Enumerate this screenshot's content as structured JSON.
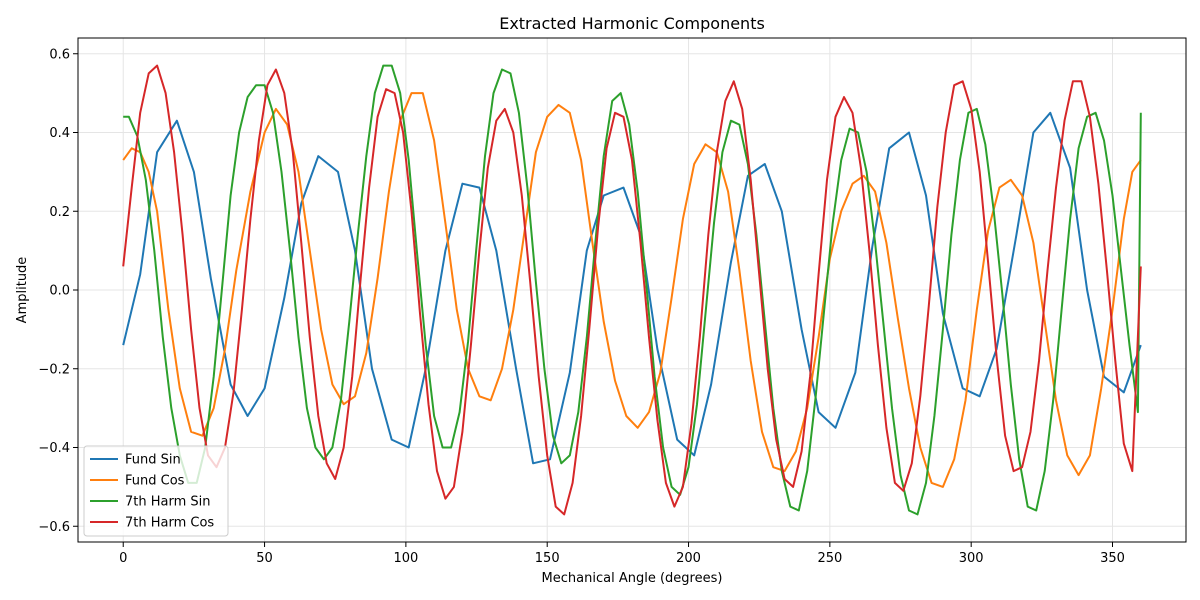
{
  "chart_data": {
    "type": "line",
    "title": "Extracted Harmonic Components",
    "xlabel": "Mechanical Angle (degrees)",
    "ylabel": "Amplitude",
    "xlim": [
      -16,
      376
    ],
    "ylim": [
      -0.64,
      0.64
    ],
    "xticks": [
      0,
      50,
      100,
      150,
      200,
      250,
      300,
      350
    ],
    "xtick_labels": [
      "0",
      "50",
      "100",
      "150",
      "200",
      "250",
      "300",
      "350"
    ],
    "yticks": [
      -0.6,
      -0.4,
      -0.2,
      0.0,
      0.2,
      0.4,
      0.6
    ],
    "ytick_labels": [
      "−0.6",
      "−0.4",
      "−0.2",
      "0.0",
      "0.2",
      "0.4",
      "0.6"
    ],
    "grid": true,
    "legend_position": "lower-left",
    "series": [
      {
        "name": "Fund Sin",
        "color": "#1f77b4",
        "x": [
          0,
          6,
          12,
          19,
          25,
          31,
          38,
          44,
          50,
          57,
          63,
          69,
          76,
          82,
          88,
          95,
          101,
          107,
          114,
          120,
          126,
          132,
          139,
          145,
          151,
          158,
          164,
          170,
          177,
          183,
          189,
          196,
          202,
          208,
          215,
          221,
          227,
          233,
          240,
          246,
          252,
          259,
          265,
          271,
          278,
          284,
          290,
          297,
          303,
          309,
          316,
          322,
          328,
          335,
          341,
          347,
          354,
          360
        ],
        "y": [
          -0.14,
          0.04,
          0.35,
          0.43,
          0.3,
          0.03,
          -0.24,
          -0.32,
          -0.25,
          -0.02,
          0.22,
          0.34,
          0.3,
          0.1,
          -0.2,
          -0.38,
          -0.4,
          -0.2,
          0.1,
          0.27,
          0.26,
          0.1,
          -0.2,
          -0.44,
          -0.43,
          -0.21,
          0.1,
          0.24,
          0.26,
          0.14,
          -0.15,
          -0.38,
          -0.42,
          -0.24,
          0.07,
          0.29,
          0.32,
          0.2,
          -0.1,
          -0.31,
          -0.35,
          -0.21,
          0.11,
          0.36,
          0.4,
          0.24,
          -0.06,
          -0.25,
          -0.27,
          -0.15,
          0.14,
          0.4,
          0.45,
          0.31,
          0.0,
          -0.22,
          -0.26,
          -0.14
        ]
      },
      {
        "name": "Fund Cos",
        "color": "#ff7f0e",
        "x": [
          0,
          3,
          6,
          9,
          12,
          16,
          20,
          24,
          28,
          32,
          36,
          40,
          45,
          50,
          54,
          58,
          62,
          66,
          70,
          74,
          78,
          82,
          86,
          90,
          94,
          98,
          102,
          106,
          110,
          114,
          118,
          122,
          126,
          130,
          134,
          138,
          142,
          146,
          150,
          154,
          158,
          162,
          166,
          170,
          174,
          178,
          182,
          186,
          190,
          194,
          198,
          202,
          206,
          210,
          214,
          218,
          222,
          226,
          230,
          234,
          238,
          242,
          246,
          250,
          254,
          258,
          262,
          266,
          270,
          274,
          278,
          282,
          286,
          290,
          294,
          298,
          302,
          306,
          310,
          314,
          318,
          322,
          326,
          330,
          334,
          338,
          342,
          346,
          350,
          354,
          357,
          360
        ],
        "y": [
          0.33,
          0.36,
          0.35,
          0.3,
          0.2,
          -0.05,
          -0.25,
          -0.36,
          -0.37,
          -0.3,
          -0.15,
          0.05,
          0.25,
          0.4,
          0.46,
          0.42,
          0.3,
          0.1,
          -0.1,
          -0.24,
          -0.29,
          -0.27,
          -0.16,
          0.03,
          0.25,
          0.43,
          0.5,
          0.5,
          0.38,
          0.17,
          -0.05,
          -0.2,
          -0.27,
          -0.28,
          -0.2,
          -0.05,
          0.15,
          0.35,
          0.44,
          0.47,
          0.45,
          0.33,
          0.12,
          -0.08,
          -0.23,
          -0.32,
          -0.35,
          -0.31,
          -0.21,
          -0.02,
          0.18,
          0.32,
          0.37,
          0.35,
          0.25,
          0.05,
          -0.18,
          -0.36,
          -0.45,
          -0.46,
          -0.41,
          -0.3,
          -0.12,
          0.08,
          0.2,
          0.27,
          0.29,
          0.25,
          0.12,
          -0.07,
          -0.25,
          -0.4,
          -0.49,
          -0.5,
          -0.43,
          -0.28,
          -0.05,
          0.15,
          0.26,
          0.28,
          0.24,
          0.12,
          -0.08,
          -0.28,
          -0.42,
          -0.47,
          -0.42,
          -0.25,
          -0.05,
          0.18,
          0.3,
          0.33
        ]
      },
      {
        "name": "7th Harm Sin",
        "color": "#2ca02c",
        "x": [
          0,
          2,
          5,
          8,
          11,
          14,
          17,
          20,
          23,
          26,
          29,
          32,
          35,
          38,
          41,
          44,
          47,
          50,
          53,
          56,
          59,
          62,
          65,
          68,
          71,
          74,
          77,
          80,
          83,
          86,
          89,
          92,
          95,
          98,
          101,
          104,
          107,
          110,
          113,
          116,
          119,
          122,
          125,
          128,
          131,
          134,
          137,
          140,
          143,
          146,
          149,
          152,
          155,
          158,
          161,
          164,
          167,
          170,
          173,
          176,
          179,
          182,
          185,
          188,
          191,
          194,
          197,
          200,
          203,
          206,
          209,
          212,
          215,
          218,
          221,
          224,
          227,
          230,
          233,
          236,
          239,
          242,
          245,
          248,
          251,
          254,
          257,
          260,
          263,
          266,
          269,
          272,
          275,
          278,
          281,
          284,
          287,
          290,
          293,
          296,
          299,
          302,
          305,
          308,
          311,
          314,
          317,
          320,
          323,
          326,
          329,
          332,
          335,
          338,
          341,
          344,
          347,
          350,
          353,
          356,
          359,
          360
        ],
        "y": [
          0.44,
          0.44,
          0.39,
          0.28,
          0.1,
          -0.12,
          -0.3,
          -0.42,
          -0.49,
          -0.49,
          -0.4,
          -0.22,
          0.01,
          0.24,
          0.4,
          0.49,
          0.52,
          0.52,
          0.45,
          0.3,
          0.1,
          -0.12,
          -0.3,
          -0.4,
          -0.43,
          -0.4,
          -0.28,
          -0.08,
          0.14,
          0.34,
          0.5,
          0.57,
          0.57,
          0.5,
          0.33,
          0.09,
          -0.14,
          -0.32,
          -0.4,
          -0.4,
          -0.31,
          -0.13,
          0.11,
          0.34,
          0.5,
          0.56,
          0.55,
          0.45,
          0.26,
          0.02,
          -0.2,
          -0.37,
          -0.44,
          -0.42,
          -0.31,
          -0.12,
          0.12,
          0.34,
          0.48,
          0.5,
          0.42,
          0.25,
          0.02,
          -0.22,
          -0.4,
          -0.5,
          -0.52,
          -0.45,
          -0.29,
          -0.06,
          0.17,
          0.35,
          0.43,
          0.42,
          0.32,
          0.14,
          -0.08,
          -0.3,
          -0.46,
          -0.55,
          -0.56,
          -0.46,
          -0.27,
          -0.05,
          0.17,
          0.33,
          0.41,
          0.4,
          0.3,
          0.12,
          -0.09,
          -0.3,
          -0.47,
          -0.56,
          -0.57,
          -0.49,
          -0.32,
          -0.1,
          0.14,
          0.33,
          0.45,
          0.46,
          0.37,
          0.2,
          -0.01,
          -0.24,
          -0.43,
          -0.55,
          -0.56,
          -0.46,
          -0.28,
          -0.05,
          0.18,
          0.36,
          0.44,
          0.45,
          0.38,
          0.24,
          0.05,
          -0.14,
          -0.31,
          0.45
        ]
      },
      {
        "name": "7th Harm Cos",
        "color": "#d62728",
        "x": [
          0,
          3,
          6,
          9,
          12,
          15,
          18,
          21,
          24,
          27,
          30,
          33,
          36,
          39,
          42,
          45,
          48,
          51,
          54,
          57,
          60,
          63,
          66,
          69,
          72,
          75,
          78,
          81,
          84,
          87,
          90,
          93,
          96,
          99,
          102,
          105,
          108,
          111,
          114,
          117,
          120,
          123,
          126,
          129,
          132,
          135,
          138,
          141,
          144,
          147,
          150,
          153,
          156,
          159,
          162,
          165,
          168,
          171,
          174,
          177,
          180,
          183,
          186,
          189,
          192,
          195,
          198,
          201,
          204,
          207,
          210,
          213,
          216,
          219,
          222,
          225,
          228,
          231,
          234,
          237,
          240,
          243,
          246,
          249,
          252,
          255,
          258,
          261,
          264,
          267,
          270,
          273,
          276,
          279,
          282,
          285,
          288,
          291,
          294,
          297,
          300,
          303,
          306,
          309,
          312,
          315,
          318,
          321,
          324,
          327,
          330,
          333,
          336,
          339,
          342,
          345,
          348,
          351,
          354,
          357,
          360
        ],
        "y": [
          0.06,
          0.26,
          0.45,
          0.55,
          0.57,
          0.5,
          0.35,
          0.14,
          -0.1,
          -0.3,
          -0.42,
          -0.45,
          -0.4,
          -0.26,
          -0.05,
          0.18,
          0.38,
          0.52,
          0.56,
          0.5,
          0.35,
          0.12,
          -0.12,
          -0.32,
          -0.44,
          -0.48,
          -0.4,
          -0.22,
          0.03,
          0.26,
          0.44,
          0.51,
          0.5,
          0.4,
          0.2,
          -0.06,
          -0.29,
          -0.46,
          -0.53,
          -0.5,
          -0.36,
          -0.14,
          0.1,
          0.31,
          0.43,
          0.46,
          0.4,
          0.24,
          0.02,
          -0.22,
          -0.42,
          -0.55,
          -0.57,
          -0.49,
          -0.32,
          -0.09,
          0.16,
          0.36,
          0.45,
          0.44,
          0.33,
          0.12,
          -0.12,
          -0.33,
          -0.49,
          -0.55,
          -0.5,
          -0.34,
          -0.12,
          0.14,
          0.35,
          0.48,
          0.53,
          0.46,
          0.28,
          0.04,
          -0.2,
          -0.38,
          -0.48,
          -0.5,
          -0.41,
          -0.22,
          0.04,
          0.28,
          0.44,
          0.49,
          0.45,
          0.31,
          0.1,
          -0.14,
          -0.35,
          -0.49,
          -0.51,
          -0.44,
          -0.27,
          -0.04,
          0.21,
          0.4,
          0.52,
          0.53,
          0.46,
          0.3,
          0.07,
          -0.17,
          -0.37,
          -0.46,
          -0.45,
          -0.36,
          -0.18,
          0.05,
          0.26,
          0.43,
          0.53,
          0.53,
          0.44,
          0.27,
          0.05,
          -0.18,
          -0.39,
          -0.46,
          0.06
        ]
      }
    ]
  }
}
